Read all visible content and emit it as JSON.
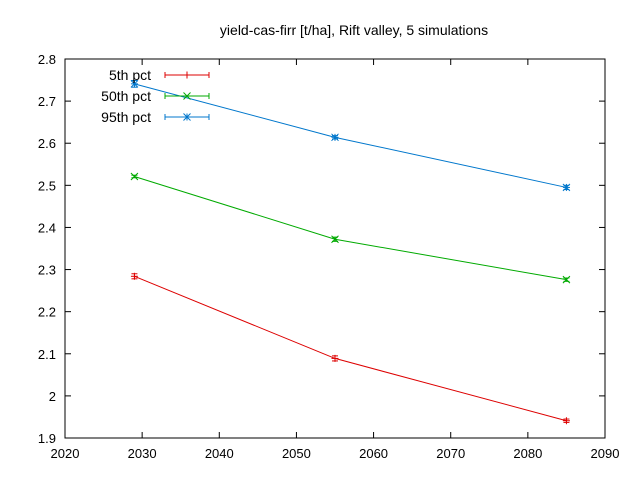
{
  "chart_data": {
    "type": "line",
    "title": "yield-cas-firr [t/ha], Rift valley, 5 simulations",
    "xlabel": "",
    "ylabel": "",
    "xlim": [
      2020,
      2090
    ],
    "ylim": [
      1.9,
      2.8
    ],
    "x_ticks": [
      2020,
      2030,
      2040,
      2050,
      2060,
      2070,
      2080,
      2090
    ],
    "x_tick_labels": [
      "2020",
      "2030",
      "2040",
      "2050",
      "2060",
      "2070",
      "2080",
      "2090"
    ],
    "y_ticks": [
      1.9,
      2.0,
      2.1,
      2.2,
      2.3,
      2.4,
      2.5,
      2.6,
      2.7,
      2.8
    ],
    "y_tick_labels": [
      "1.9",
      "2",
      "2.1",
      "2.2",
      "2.3",
      "2.4",
      "2.5",
      "2.6",
      "2.7",
      "2.8"
    ],
    "grid": false,
    "legend_position": "top-left",
    "x": [
      2029,
      2055,
      2085
    ],
    "series": [
      {
        "name": "5th pct",
        "color": "#dd0000",
        "marker": "plus",
        "values": [
          2.284,
          2.089,
          1.941
        ],
        "errors": [
          0.006,
          0.006,
          0.004
        ]
      },
      {
        "name": "50th pct",
        "color": "#00aa00",
        "marker": "cross",
        "values": [
          2.521,
          2.372,
          2.276
        ],
        "errors": [
          0.003,
          0.005,
          0.004
        ]
      },
      {
        "name": "95th pct",
        "color": "#0077cc",
        "marker": "asterisk",
        "values": [
          2.741,
          2.614,
          2.495
        ],
        "errors": [
          0.008,
          0.004,
          0.005
        ]
      }
    ]
  }
}
